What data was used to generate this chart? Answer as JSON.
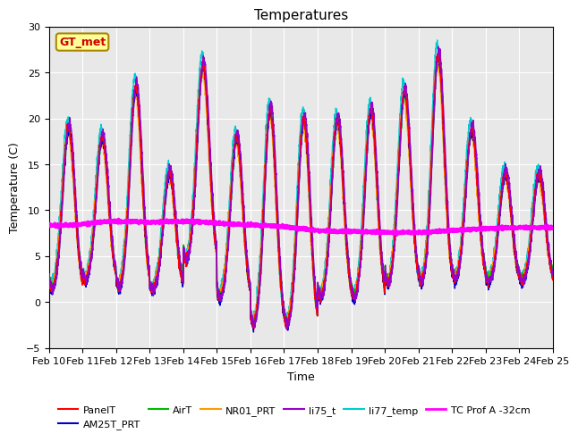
{
  "title": "Temperatures",
  "xlabel": "Time",
  "ylabel": "Temperature (C)",
  "ylim": [
    -5,
    30
  ],
  "xlim": [
    0,
    15
  ],
  "x_tick_labels": [
    "Feb 10",
    "Feb 11",
    "Feb 12",
    "Feb 13",
    "Feb 14",
    "Feb 15",
    "Feb 16",
    "Feb 17",
    "Feb 18",
    "Feb 19",
    "Feb 20",
    "Feb 21",
    "Feb 22",
    "Feb 23",
    "Feb 24",
    "Feb 25"
  ],
  "y_ticks": [
    -5,
    0,
    5,
    10,
    15,
    20,
    25,
    30
  ],
  "bg_color": "#e8e8e8",
  "annotation_text": "GT_met",
  "annotation_color": "#cc0000",
  "annotation_bg": "#ffff99",
  "series_colors": {
    "PanelT": "#ff0000",
    "AM25T_PRT": "#0000cc",
    "AirT": "#00bb00",
    "NR01_PRT": "#ff9900",
    "li75_t": "#9900cc",
    "li77_temp": "#00cccc",
    "TC Prof A -32cm": "#ff00ff"
  },
  "series_lw": {
    "PanelT": 1.0,
    "AM25T_PRT": 1.0,
    "AirT": 1.0,
    "NR01_PRT": 1.0,
    "li75_t": 1.0,
    "li77_temp": 1.0,
    "TC Prof A -32cm": 2.5
  },
  "day_peak_temps": [
    19,
    18,
    23.5,
    14,
    26,
    18,
    21,
    20,
    20,
    21,
    23,
    27,
    19,
    14,
    14
  ],
  "day_min_temps": [
    1,
    2,
    1,
    1,
    4,
    0,
    -3,
    -3,
    0,
    0,
    1.5,
    1.5,
    2,
    2,
    2
  ],
  "tc_prof_values": [
    8.4,
    8.5,
    8.8,
    8.7,
    8.8,
    8.6,
    8.4,
    8.2,
    7.8,
    7.7,
    7.6,
    7.6,
    7.8,
    8.0,
    8.1,
    8.1
  ]
}
